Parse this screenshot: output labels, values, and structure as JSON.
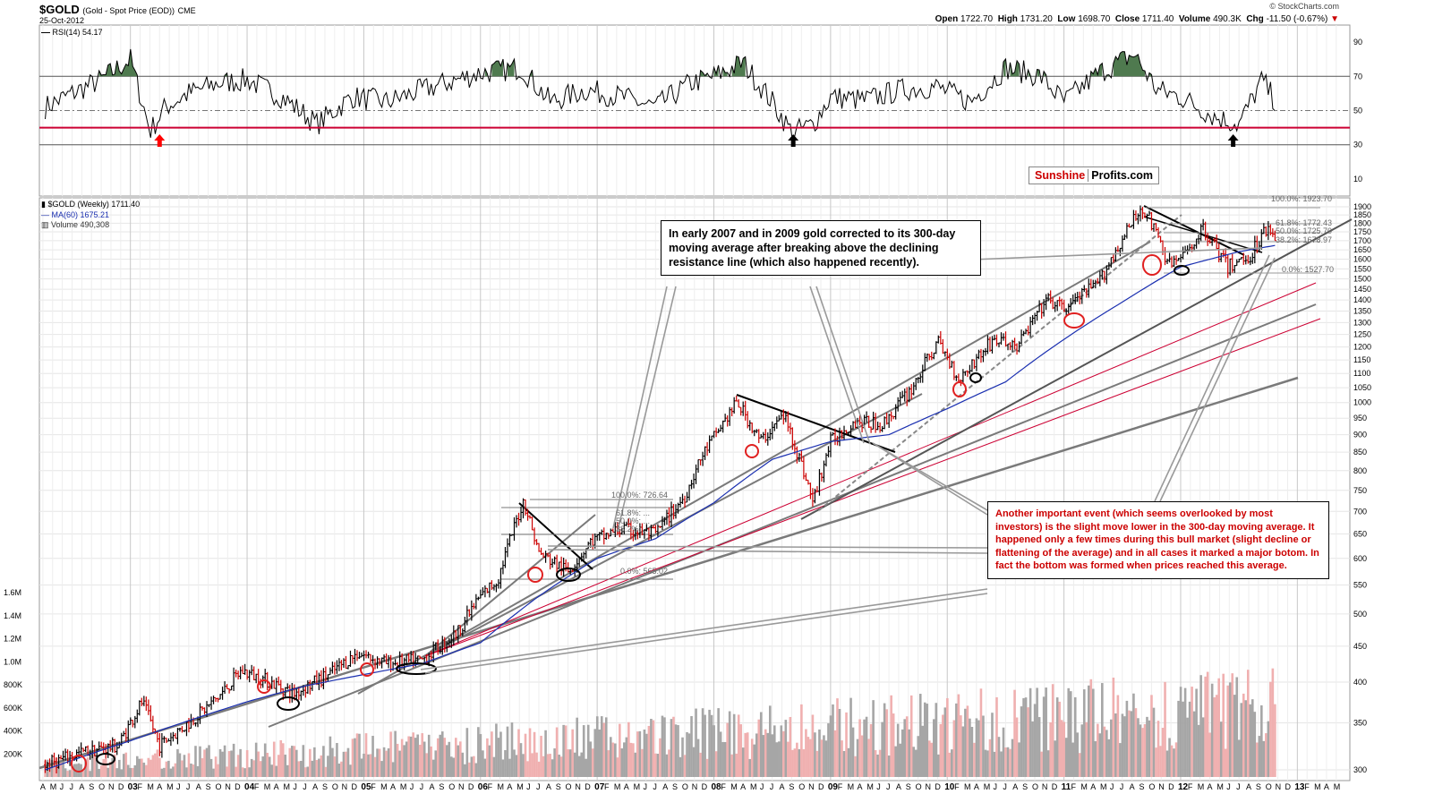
{
  "header": {
    "symbol": "$GOLD",
    "description": "(Gold - Spot Price (EOD))",
    "exchange": "CME",
    "date": "25-Oct-2012",
    "credit": "© StockCharts.com",
    "open_label": "Open",
    "open": "1722.70",
    "high_label": "High",
    "high": "1731.20",
    "low_label": "Low",
    "low": "1698.70",
    "close_label": "Close",
    "close": "1711.40",
    "volume_label": "Volume",
    "volume": "490.3K",
    "chg_label": "Chg",
    "chg": "-11.50 (-0.67%)"
  },
  "rsi_panel": {
    "label": "RSI(14) 54.17"
  },
  "price_panel": {
    "label": "$GOLD (Weekly) 1711.40",
    "ma_label": "MA(60) 1675.21",
    "volume_label": "Volume 490,308"
  },
  "logo": {
    "part1": "Sunshine",
    "part2": "Profits.com"
  },
  "annotations": {
    "note1": "In early 2007 and in 2009 gold corrected to its 300-day moving average after breaking above the declining resistance line (which also happened recently).",
    "note2": "Another important event (which seems overlooked by most investors) is the slight move lower in the 300-day moving average. It happened only a few times during this bull market (slight decline or flattening of the average) and in all cases it marked a major botom. In fact the bottom was formed when prices reached this average."
  },
  "fib_levels_2012": [
    "100.0%: 1923.70",
    "61.8%: 1772.43",
    "50.0%: 1725.70",
    "38.2%: 1678.97",
    "0.0%: 1527.70"
  ],
  "fib_levels_2006": [
    "100.0%: 726.64",
    "61.8%: ...",
    "50.0%: ...",
    "38.2%: ...",
    "0.0%: 565.02"
  ],
  "colors": {
    "price_up": "#000000",
    "price_down": "#cc0000",
    "ma": "#1a2fb0",
    "rsi_line": "#000000",
    "rsi_fill": "#4f7a4f",
    "support_red": "#cc0033",
    "trend_gray": "#7a7a7a",
    "volume_up": "#a6a6a6",
    "volume_down": "#f0b0b0"
  },
  "chart_data": [
    {
      "type": "line",
      "title": "RSI(14) 54.17",
      "y_ticks": [
        10,
        30,
        50,
        70,
        90
      ],
      "ylim": [
        0,
        100
      ],
      "reference_lines": [
        30,
        40,
        50,
        70
      ],
      "series": [
        {
          "name": "RSI(14)",
          "x": [
            2002.27,
            2002.5,
            2002.75,
            2003.0,
            2003.17,
            2003.3,
            2003.5,
            2003.75,
            2004.0,
            2004.3,
            2004.6,
            2004.9,
            2005.2,
            2005.5,
            2005.8,
            2006.0,
            2006.35,
            2006.6,
            2006.9,
            2007.2,
            2007.5,
            2007.8,
            2008.0,
            2008.25,
            2008.5,
            2008.67,
            2008.85,
            2009.0,
            2009.3,
            2009.6,
            2009.9,
            2010.2,
            2010.5,
            2010.8,
            2011.0,
            2011.3,
            2011.6,
            2011.8,
            2012.0,
            2012.3,
            2012.5,
            2012.7,
            2012.82
          ],
          "values": [
            52,
            60,
            68,
            80,
            38,
            52,
            60,
            66,
            68,
            58,
            42,
            58,
            55,
            62,
            68,
            72,
            75,
            55,
            62,
            58,
            52,
            66,
            70,
            78,
            55,
            37,
            42,
            58,
            56,
            62,
            64,
            55,
            75,
            70,
            55,
            72,
            83,
            62,
            58,
            46,
            42,
            68,
            54
          ]
        }
      ]
    },
    {
      "type": "line",
      "title": "$GOLD (Weekly) 1711.40",
      "y_ticks": [
        300,
        350,
        400,
        450,
        500,
        550,
        600,
        650,
        700,
        750,
        800,
        850,
        900,
        950,
        1000,
        1050,
        1100,
        1150,
        1200,
        1250,
        1300,
        1350,
        1400,
        1450,
        1500,
        1550,
        1600,
        1650,
        1700,
        1750,
        1800,
        1850,
        1900
      ],
      "x_tick_labels": [
        "A",
        "M",
        "J",
        "J",
        "A",
        "S",
        "O",
        "N",
        "D",
        "03",
        "F",
        "M",
        "A",
        "M",
        "J",
        "J",
        "A",
        "S",
        "O",
        "N",
        "D",
        "04",
        "F",
        "M",
        "A",
        "M",
        "J",
        "J",
        "A",
        "S",
        "O",
        "N",
        "D",
        "05",
        "F",
        "M",
        "A",
        "M",
        "J",
        "J",
        "A",
        "S",
        "O",
        "N",
        "D",
        "06",
        "F",
        "M",
        "A",
        "M",
        "J",
        "J",
        "A",
        "S",
        "O",
        "N",
        "D",
        "07",
        "F",
        "M",
        "A",
        "M",
        "J",
        "J",
        "A",
        "S",
        "O",
        "N",
        "D",
        "08",
        "F",
        "M",
        "A",
        "M",
        "J",
        "J",
        "A",
        "S",
        "O",
        "N",
        "D",
        "09",
        "F",
        "M",
        "A",
        "M",
        "J",
        "J",
        "A",
        "S",
        "O",
        "N",
        "D",
        "10",
        "F",
        "M",
        "A",
        "M",
        "J",
        "J",
        "A",
        "S",
        "O",
        "N",
        "D",
        "11",
        "F",
        "M",
        "A",
        "M",
        "J",
        "J",
        "A",
        "S",
        "O",
        "N",
        "D",
        "12",
        "F",
        "M",
        "A",
        "M",
        "J",
        "J",
        "A",
        "S",
        "O",
        "N",
        "D",
        "13",
        "F",
        "M",
        "A",
        "M"
      ],
      "series": [
        {
          "name": "$GOLD (Weekly)",
          "x": [
            2002.27,
            2002.6,
            2002.9,
            2003.1,
            2003.25,
            2003.5,
            2003.75,
            2003.95,
            2004.2,
            2004.4,
            2004.7,
            2004.95,
            2005.2,
            2005.5,
            2005.8,
            2006.0,
            2006.15,
            2006.37,
            2006.5,
            2006.75,
            2006.95,
            2007.2,
            2007.5,
            2007.75,
            2007.9,
            2008.2,
            2008.4,
            2008.6,
            2008.85,
            2009.0,
            2009.2,
            2009.45,
            2009.7,
            2009.92,
            2010.1,
            2010.4,
            2010.6,
            2010.85,
            2011.0,
            2011.3,
            2011.6,
            2011.68,
            2011.9,
            2012.0,
            2012.2,
            2012.4,
            2012.6,
            2012.75,
            2012.82
          ],
          "values": [
            305,
            318,
            325,
            375,
            325,
            350,
            380,
            415,
            400,
            385,
            410,
            440,
            425,
            430,
            470,
            530,
            560,
            725,
            610,
            575,
            635,
            660,
            650,
            735,
            840,
            1000,
            880,
            960,
            720,
            880,
            940,
            930,
            1050,
            1220,
            1080,
            1230,
            1200,
            1400,
            1360,
            1480,
            1820,
            1900,
            1570,
            1600,
            1770,
            1560,
            1620,
            1790,
            1711
          ]
        },
        {
          "name": "MA(60) 1675.21",
          "x": [
            2002.27,
            2003.0,
            2004.0,
            2004.5,
            2005.0,
            2005.5,
            2006.0,
            2006.5,
            2007.0,
            2007.5,
            2008.0,
            2008.5,
            2009.0,
            2009.5,
            2010.0,
            2010.5,
            2011.0,
            2011.5,
            2012.0,
            2012.5,
            2012.82
          ],
          "values": [
            300,
            330,
            375,
            395,
            410,
            425,
            455,
            530,
            600,
            640,
            720,
            830,
            880,
            900,
            980,
            1070,
            1230,
            1390,
            1560,
            1640,
            1675
          ]
        }
      ]
    },
    {
      "type": "bar",
      "title": "Volume 490,308",
      "y_ticks": [
        "200K",
        "400K",
        "600K",
        "800K",
        "1.0M",
        "1.2M",
        "1.4M",
        "1.6M"
      ]
    }
  ]
}
